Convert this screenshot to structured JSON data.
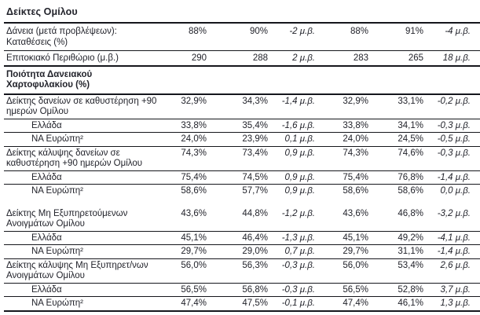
{
  "title": "Δείκτες Ομίλου",
  "colors": {
    "text": "#22232b",
    "rule": "#15161c",
    "background": "#ffffff"
  },
  "unit_label": "μ.β.",
  "rows": [
    {
      "type": "data",
      "indent": false,
      "lines": [
        "Δάνεια (μετά προβλέψεων):",
        "Καταθέσεις (%)"
      ],
      "values": [
        "88%",
        "90%",
        "-2 μ.β.",
        "88%",
        "91%",
        "-4 μ.β."
      ],
      "rule": "thin",
      "pad": "pt4 pb3"
    },
    {
      "type": "data",
      "indent": false,
      "lines": [
        "Επιτοκιακό Περιθώριο (μ.β.)"
      ],
      "values": [
        "290",
        "288",
        "2 μ.β.",
        "283",
        "265",
        "18 μ.β."
      ],
      "rule": "thick",
      "pad": "pt3"
    },
    {
      "type": "section",
      "indent": false,
      "lines": [
        "Ποιότητα Δανειακού",
        "Χαρτοφυλακίου (%)"
      ],
      "values": [
        "",
        "",
        "",
        "",
        "",
        ""
      ],
      "rule": "thick",
      "pad": "pt4 pb3"
    },
    {
      "type": "data",
      "indent": false,
      "lines": [
        "Δείκτης δανείων σε καθυστέρηση +90",
        "ημερών Ομίλου"
      ],
      "values": [
        "32,9%",
        "34,3%",
        "-1,4 μ.β.",
        "32,9%",
        "33,1%",
        "-0,2 μ.β."
      ],
      "rule": "thin",
      "pad": ""
    },
    {
      "type": "data",
      "indent": true,
      "lines": [
        "Ελλάδα"
      ],
      "values": [
        "33,8%",
        "35,4%",
        "-1,6 μ.β.",
        "33,8%",
        "34,1%",
        "-0,3 μ.β."
      ],
      "rule": "thin",
      "pad": ""
    },
    {
      "type": "data",
      "indent": true,
      "lines": [
        "ΝΑ Ευρώπη²"
      ],
      "values": [
        "24,0%",
        "23,9%",
        "0,1 μ.β.",
        "24,0%",
        "24,5%",
        "-0,5 μ.β."
      ],
      "rule": "thin",
      "pad": ""
    },
    {
      "type": "data",
      "indent": false,
      "lines": [
        "Δείκτης κάλυψης δανείων σε",
        "καθυστέρηση +90 ημερών Ομίλου"
      ],
      "values": [
        "74,3%",
        "73,4%",
        "0,9 μ.β.",
        "74,3%",
        "74,6%",
        "-0,3 μ.β."
      ],
      "rule": "thin",
      "pad": ""
    },
    {
      "type": "data",
      "indent": true,
      "lines": [
        "Ελλάδα"
      ],
      "values": [
        "75,4%",
        "74,5%",
        "0,9 μ.β.",
        "75,4%",
        "76,8%",
        "-1,4 μ.β."
      ],
      "rule": "thin",
      "pad": ""
    },
    {
      "type": "data",
      "indent": true,
      "lines": [
        "ΝΑ Ευρώπη²"
      ],
      "values": [
        "58,6%",
        "57,7%",
        "0,9 μ.β.",
        "58,6%",
        "58,6%",
        "0,0 μ.β."
      ],
      "rule": "none",
      "pad": "pb7"
    },
    {
      "type": "data",
      "indent": false,
      "lines": [
        "Δείκτης Μη Εξυπηρετούμενων",
        "Ανοιγμάτων Ομίλου"
      ],
      "values": [
        "43,6%",
        "44,8%",
        "-1,2 μ.β.",
        "43,6%",
        "46,8%",
        "-3,2 μ.β."
      ],
      "rule": "thin",
      "pad": "pt8"
    },
    {
      "type": "data",
      "indent": true,
      "lines": [
        "Ελλάδα"
      ],
      "values": [
        "45,1%",
        "46,4%",
        "-1,3 μ.β.",
        "45,1%",
        "49,2%",
        "-4,1 μ.β."
      ],
      "rule": "thin",
      "pad": ""
    },
    {
      "type": "data",
      "indent": true,
      "lines": [
        "ΝΑ Ευρώπη²"
      ],
      "values": [
        "29,7%",
        "29,0%",
        "0,7 μ.β.",
        "29,7%",
        "31,1%",
        "-1,4 μ.β."
      ],
      "rule": "thin",
      "pad": ""
    },
    {
      "type": "data",
      "indent": false,
      "lines": [
        "Δείκτης κάλυψης Μη Εξυπηρετ/νων",
        "Ανοιγμάτων Ομίλου"
      ],
      "values": [
        "56,0%",
        "56,3%",
        "-0,3 μ.β.",
        "56,0%",
        "53,4%",
        "2,6 μ.β."
      ],
      "rule": "thin",
      "pad": ""
    },
    {
      "type": "data",
      "indent": true,
      "lines": [
        "Ελλάδα"
      ],
      "values": [
        "56,5%",
        "56,8%",
        "-0,3 μ.β.",
        "56,5%",
        "52,8%",
        "3,7 μ.β."
      ],
      "rule": "thin",
      "pad": ""
    },
    {
      "type": "data",
      "indent": true,
      "lines": [
        "ΝΑ Ευρώπη²"
      ],
      "values": [
        "47,4%",
        "47,5%",
        "-0,1 μ.β.",
        "47,4%",
        "46,1%",
        "1,3 μ.β."
      ],
      "rule": "thick",
      "pad": ""
    }
  ]
}
